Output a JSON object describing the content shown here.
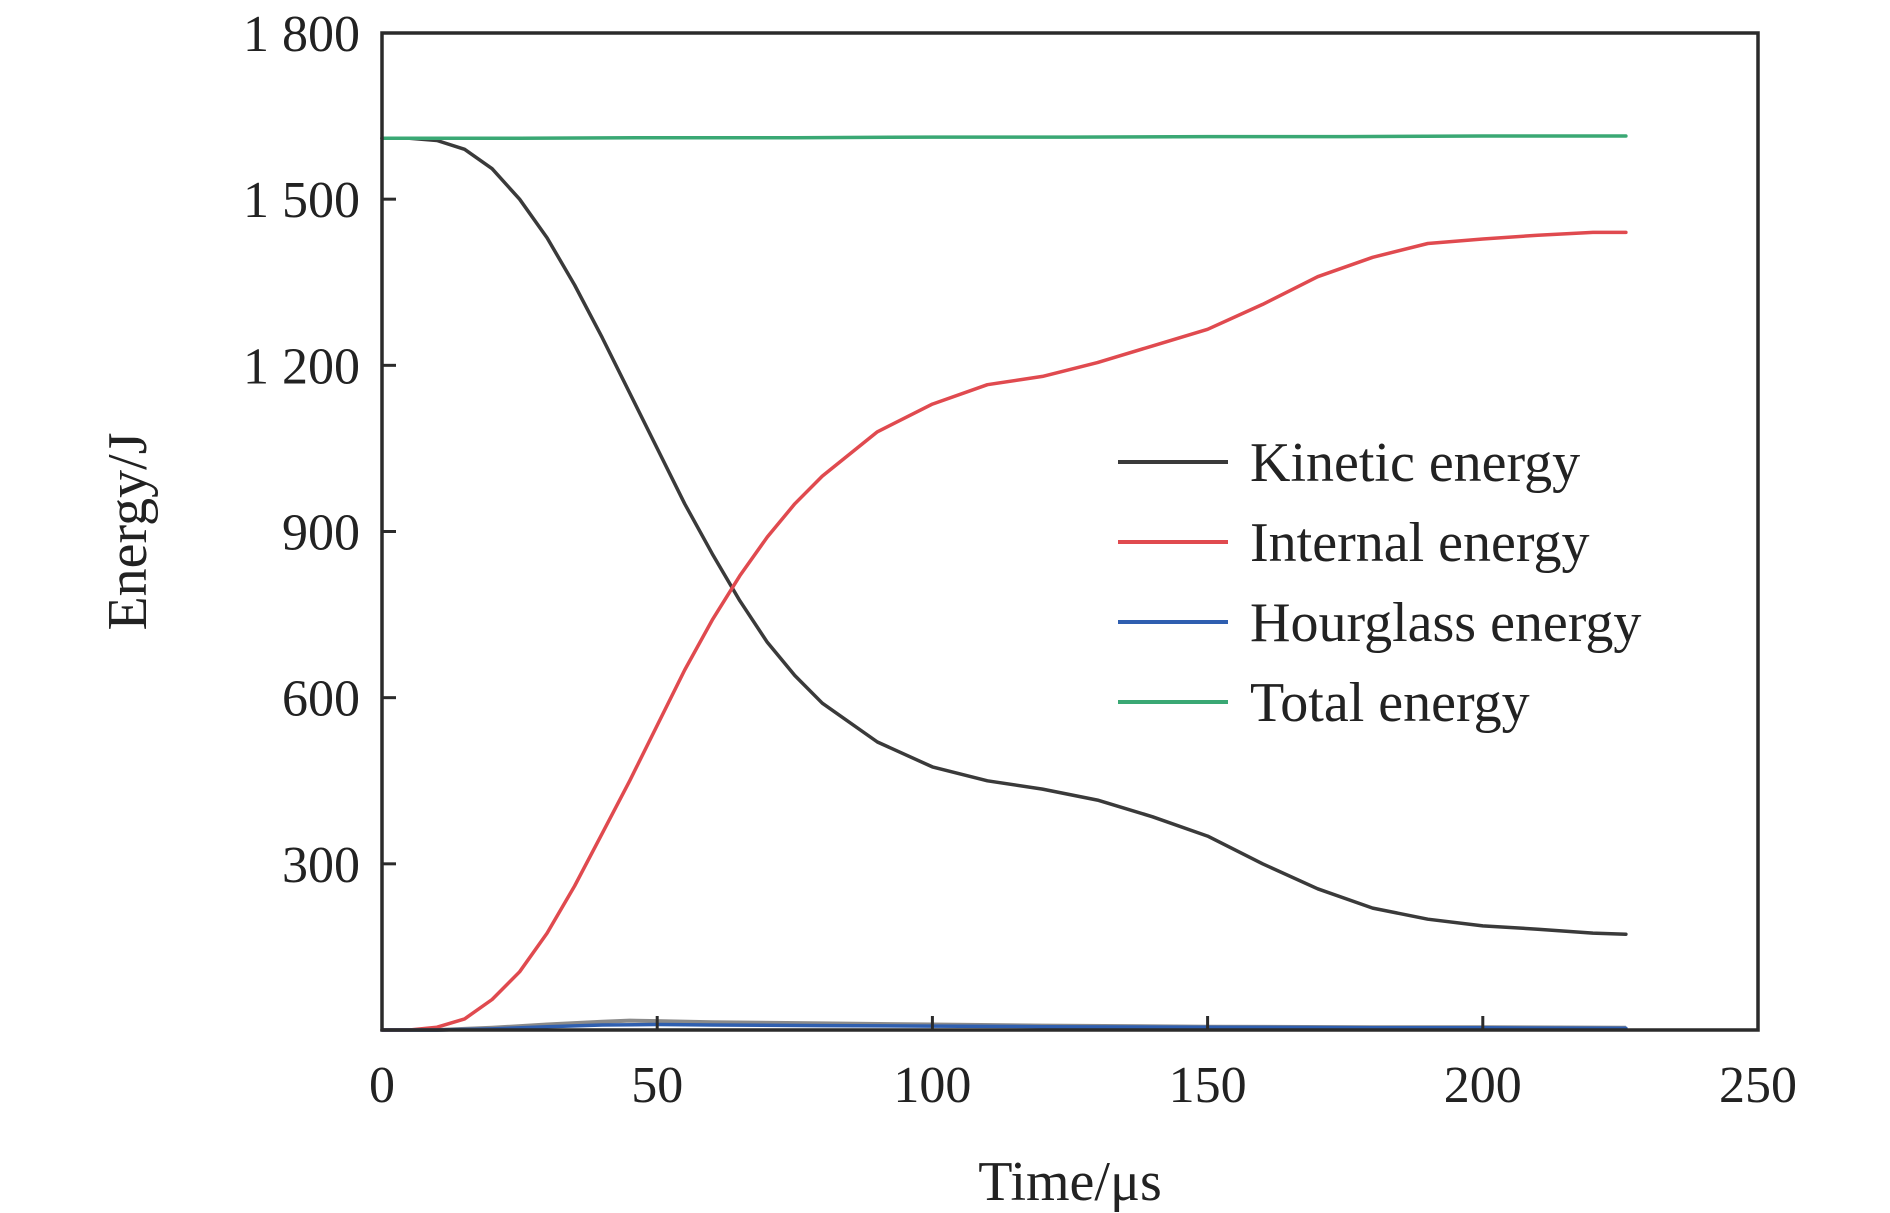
{
  "chart_data": {
    "type": "line",
    "title": "",
    "xlabel": "Time/μs",
    "ylabel": "Energy/J",
    "xlim": [
      0,
      250
    ],
    "ylim": [
      0,
      1800
    ],
    "xticks": [
      0,
      50,
      100,
      150,
      200,
      250
    ],
    "xtick_labels": [
      "0",
      "50",
      "100",
      "150",
      "200",
      "250"
    ],
    "yticks": [
      300,
      600,
      900,
      1200,
      1500,
      1800
    ],
    "ytick_labels": [
      "300",
      "600",
      "900",
      "1 200",
      "1 500",
      "1 800"
    ],
    "grid": false,
    "legend_position": "center-right",
    "series": [
      {
        "name": "Kinetic energy",
        "color": "#3a3a3a",
        "x": [
          0,
          5,
          10,
          15,
          20,
          25,
          30,
          35,
          40,
          45,
          50,
          55,
          60,
          65,
          70,
          75,
          80,
          90,
          100,
          110,
          120,
          130,
          140,
          150,
          160,
          170,
          180,
          190,
          200,
          210,
          220,
          226
        ],
        "y": [
          1610,
          1610,
          1606,
          1590,
          1555,
          1500,
          1430,
          1345,
          1250,
          1150,
          1050,
          950,
          860,
          775,
          700,
          640,
          590,
          520,
          475,
          450,
          435,
          415,
          385,
          350,
          300,
          255,
          220,
          200,
          188,
          182,
          175,
          173
        ]
      },
      {
        "name": "Internal energy",
        "color": "#e04a4f",
        "x": [
          0,
          5,
          10,
          15,
          20,
          25,
          30,
          35,
          40,
          45,
          50,
          55,
          60,
          65,
          70,
          75,
          80,
          90,
          100,
          110,
          120,
          130,
          140,
          150,
          160,
          170,
          180,
          190,
          200,
          210,
          220,
          226
        ],
        "y": [
          0,
          0,
          5,
          20,
          55,
          105,
          175,
          260,
          355,
          450,
          550,
          650,
          740,
          820,
          890,
          950,
          1000,
          1080,
          1130,
          1165,
          1180,
          1205,
          1235,
          1265,
          1310,
          1360,
          1395,
          1420,
          1428,
          1435,
          1440,
          1440
        ]
      },
      {
        "name": "Hourglass energy",
        "color": "#2f5fb0",
        "x": [
          0,
          10,
          20,
          30,
          40,
          50,
          60,
          80,
          100,
          120,
          150,
          180,
          200,
          226
        ],
        "y": [
          0,
          0,
          2,
          6,
          9,
          10,
          9,
          8,
          7,
          6,
          5,
          4,
          4,
          3
        ]
      },
      {
        "name": "Total energy",
        "color": "#3aa874",
        "x": [
          0,
          25,
          50,
          75,
          100,
          125,
          150,
          175,
          200,
          226
        ],
        "y": [
          1610,
          1610,
          1611,
          1611,
          1612,
          1612,
          1613,
          1613,
          1614,
          1614
        ]
      }
    ],
    "extra_series": [
      {
        "color": "#8a8a8a",
        "x": [
          0,
          10,
          20,
          30,
          40,
          45,
          50,
          60,
          80,
          100,
          120,
          150,
          180,
          200,
          226
        ],
        "y": [
          0,
          0,
          4,
          10,
          15,
          17,
          16,
          14,
          12,
          10,
          8,
          6,
          5,
          5,
          4
        ]
      }
    ]
  }
}
